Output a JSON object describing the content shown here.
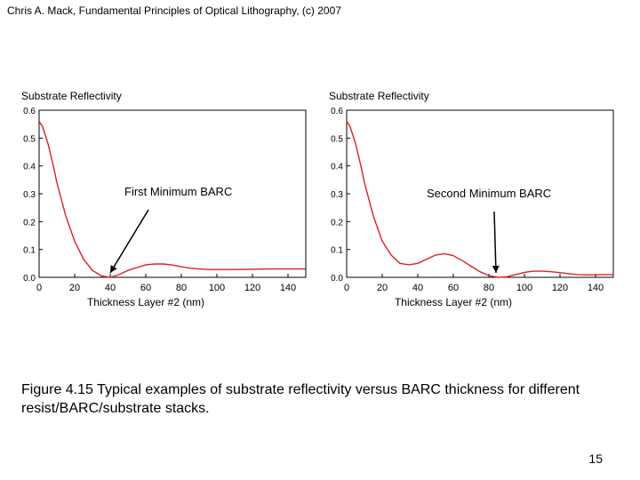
{
  "header": {
    "text": "Chris A. Mack, Fundamental Principles of Optical Lithography, (c) 2007"
  },
  "chart_data": [
    {
      "type": "line",
      "title": "Substrate Reflectivity",
      "xlabel": "Thickness Layer #2 (nm)",
      "ylabel": "Substrate Reflectivity",
      "xlim": [
        0,
        150
      ],
      "ylim": [
        0,
        0.6
      ],
      "xticks": [
        0,
        20,
        40,
        60,
        80,
        100,
        120,
        140
      ],
      "yticks": [
        0.0,
        0.1,
        0.2,
        0.3,
        0.4,
        0.5,
        0.6
      ],
      "grid": false,
      "color": "#e02020",
      "annotation": {
        "text": "First Minimum BARC",
        "target_x": 40,
        "target_y": 0.0
      },
      "series": [
        {
          "name": "reflectivity",
          "x": [
            0,
            2,
            5,
            8,
            10,
            15,
            20,
            25,
            30,
            35,
            40,
            45,
            50,
            55,
            60,
            65,
            70,
            75,
            80,
            85,
            90,
            95,
            100,
            110,
            120,
            130,
            140,
            150
          ],
          "y": [
            0.56,
            0.54,
            0.48,
            0.4,
            0.34,
            0.22,
            0.13,
            0.065,
            0.025,
            0.005,
            0.0,
            0.01,
            0.025,
            0.035,
            0.045,
            0.048,
            0.048,
            0.044,
            0.038,
            0.033,
            0.03,
            0.028,
            0.028,
            0.028,
            0.029,
            0.03,
            0.03,
            0.03
          ]
        }
      ]
    },
    {
      "type": "line",
      "title": "Substrate Reflectivity",
      "xlabel": "Thickness Layer #2 (nm)",
      "ylabel": "Substrate Reflectivity",
      "xlim": [
        0,
        150
      ],
      "ylim": [
        0,
        0.6
      ],
      "xticks": [
        0,
        20,
        40,
        60,
        80,
        100,
        120,
        140
      ],
      "yticks": [
        0.0,
        0.1,
        0.2,
        0.3,
        0.4,
        0.5,
        0.6
      ],
      "grid": false,
      "color": "#e02020",
      "annotation": {
        "text": "Second Minimum BARC",
        "target_x": 84,
        "target_y": 0.0
      },
      "series": [
        {
          "name": "reflectivity",
          "x": [
            0,
            2,
            5,
            8,
            10,
            15,
            20,
            25,
            30,
            35,
            40,
            45,
            50,
            55,
            60,
            65,
            70,
            75,
            80,
            85,
            90,
            95,
            100,
            105,
            110,
            115,
            120,
            125,
            130,
            135,
            140,
            145,
            150
          ],
          "y": [
            0.56,
            0.54,
            0.48,
            0.4,
            0.34,
            0.22,
            0.13,
            0.08,
            0.05,
            0.045,
            0.05,
            0.065,
            0.08,
            0.085,
            0.078,
            0.06,
            0.04,
            0.02,
            0.006,
            0.0,
            0.002,
            0.01,
            0.018,
            0.022,
            0.022,
            0.02,
            0.017,
            0.013,
            0.01,
            0.009,
            0.009,
            0.01,
            0.01
          ]
        }
      ]
    }
  ],
  "caption": {
    "text": "Figure 4.15  Typical examples of substrate reflectivity versus BARC thickness for different resist/BARC/substrate stacks."
  },
  "page": {
    "number": "15"
  }
}
